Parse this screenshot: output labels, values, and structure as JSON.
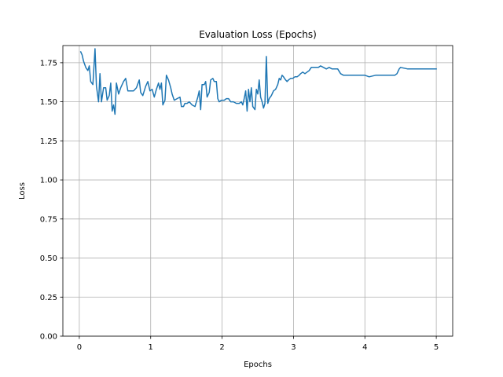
{
  "chart_data": {
    "type": "line",
    "title": "Evaluation Loss (Epochs)",
    "xlabel": "Epochs",
    "ylabel": "Loss",
    "xlim": [
      -0.23,
      5.23
    ],
    "ylim": [
      0.0,
      1.86
    ],
    "xticks": [
      0,
      1,
      2,
      3,
      4,
      5
    ],
    "xtick_labels": [
      "0",
      "1",
      "2",
      "3",
      "4",
      "5"
    ],
    "yticks": [
      0.0,
      0.25,
      0.5,
      0.75,
      1.0,
      1.25,
      1.5,
      1.75
    ],
    "ytick_labels": [
      "0.00",
      "0.25",
      "0.50",
      "0.75",
      "1.00",
      "1.25",
      "1.50",
      "1.75"
    ],
    "grid": true,
    "series_color": "#1f77b4",
    "grid_color": "#b0b0b0",
    "series": [
      {
        "values": [
          [
            0.02,
            1.82
          ],
          [
            0.04,
            1.8
          ],
          [
            0.06,
            1.76
          ],
          [
            0.09,
            1.72
          ],
          [
            0.12,
            1.7
          ],
          [
            0.14,
            1.73
          ],
          [
            0.16,
            1.63
          ],
          [
            0.19,
            1.61
          ],
          [
            0.22,
            1.84
          ],
          [
            0.24,
            1.6
          ],
          [
            0.27,
            1.5
          ],
          [
            0.29,
            1.68
          ],
          [
            0.31,
            1.5
          ],
          [
            0.34,
            1.59
          ],
          [
            0.37,
            1.59
          ],
          [
            0.39,
            1.51
          ],
          [
            0.42,
            1.54
          ],
          [
            0.44,
            1.62
          ],
          [
            0.46,
            1.44
          ],
          [
            0.48,
            1.48
          ],
          [
            0.5,
            1.42
          ],
          [
            0.52,
            1.62
          ],
          [
            0.55,
            1.55
          ],
          [
            0.58,
            1.59
          ],
          [
            0.62,
            1.63
          ],
          [
            0.65,
            1.65
          ],
          [
            0.68,
            1.57
          ],
          [
            0.72,
            1.57
          ],
          [
            0.76,
            1.57
          ],
          [
            0.8,
            1.59
          ],
          [
            0.84,
            1.64
          ],
          [
            0.86,
            1.56
          ],
          [
            0.89,
            1.54
          ],
          [
            0.93,
            1.6
          ],
          [
            0.96,
            1.63
          ],
          [
            0.99,
            1.57
          ],
          [
            1.02,
            1.58
          ],
          [
            1.05,
            1.53
          ],
          [
            1.08,
            1.58
          ],
          [
            1.11,
            1.62
          ],
          [
            1.13,
            1.58
          ],
          [
            1.15,
            1.62
          ],
          [
            1.17,
            1.48
          ],
          [
            1.2,
            1.51
          ],
          [
            1.22,
            1.67
          ],
          [
            1.25,
            1.64
          ],
          [
            1.28,
            1.59
          ],
          [
            1.3,
            1.55
          ],
          [
            1.33,
            1.51
          ],
          [
            1.37,
            1.52
          ],
          [
            1.41,
            1.53
          ],
          [
            1.43,
            1.47
          ],
          [
            1.46,
            1.47
          ],
          [
            1.48,
            1.49
          ],
          [
            1.51,
            1.49
          ],
          [
            1.54,
            1.5
          ],
          [
            1.58,
            1.48
          ],
          [
            1.62,
            1.47
          ],
          [
            1.66,
            1.53
          ],
          [
            1.68,
            1.57
          ],
          [
            1.7,
            1.45
          ],
          [
            1.72,
            1.61
          ],
          [
            1.75,
            1.61
          ],
          [
            1.77,
            1.63
          ],
          [
            1.79,
            1.53
          ],
          [
            1.82,
            1.56
          ],
          [
            1.84,
            1.64
          ],
          [
            1.87,
            1.65
          ],
          [
            1.89,
            1.63
          ],
          [
            1.92,
            1.63
          ],
          [
            1.94,
            1.52
          ],
          [
            1.96,
            1.5
          ],
          [
            1.99,
            1.51
          ],
          [
            2.03,
            1.51
          ],
          [
            2.06,
            1.52
          ],
          [
            2.09,
            1.52
          ],
          [
            2.12,
            1.5
          ],
          [
            2.16,
            1.5
          ],
          [
            2.2,
            1.49
          ],
          [
            2.24,
            1.49
          ],
          [
            2.27,
            1.5
          ],
          [
            2.29,
            1.48
          ],
          [
            2.31,
            1.52
          ],
          [
            2.33,
            1.57
          ],
          [
            2.35,
            1.44
          ],
          [
            2.37,
            1.58
          ],
          [
            2.39,
            1.5
          ],
          [
            2.41,
            1.59
          ],
          [
            2.43,
            1.47
          ],
          [
            2.46,
            1.45
          ],
          [
            2.48,
            1.58
          ],
          [
            2.5,
            1.55
          ],
          [
            2.52,
            1.64
          ],
          [
            2.54,
            1.53
          ],
          [
            2.56,
            1.5
          ],
          [
            2.58,
            1.46
          ],
          [
            2.6,
            1.49
          ],
          [
            2.62,
            1.79
          ],
          [
            2.64,
            1.49
          ],
          [
            2.66,
            1.52
          ],
          [
            2.69,
            1.54
          ],
          [
            2.72,
            1.57
          ],
          [
            2.75,
            1.58
          ],
          [
            2.78,
            1.61
          ],
          [
            2.8,
            1.65
          ],
          [
            2.82,
            1.64
          ],
          [
            2.84,
            1.67
          ],
          [
            2.86,
            1.66
          ],
          [
            2.89,
            1.64
          ],
          [
            2.91,
            1.63
          ],
          [
            2.93,
            1.64
          ],
          [
            2.96,
            1.65
          ],
          [
            2.99,
            1.65
          ],
          [
            3.02,
            1.66
          ],
          [
            3.05,
            1.66
          ],
          [
            3.08,
            1.67
          ],
          [
            3.1,
            1.68
          ],
          [
            3.13,
            1.69
          ],
          [
            3.16,
            1.68
          ],
          [
            3.19,
            1.69
          ],
          [
            3.22,
            1.7
          ],
          [
            3.25,
            1.72
          ],
          [
            3.3,
            1.72
          ],
          [
            3.35,
            1.72
          ],
          [
            3.38,
            1.73
          ],
          [
            3.42,
            1.72
          ],
          [
            3.46,
            1.71
          ],
          [
            3.5,
            1.72
          ],
          [
            3.54,
            1.71
          ],
          [
            3.58,
            1.71
          ],
          [
            3.62,
            1.71
          ],
          [
            3.66,
            1.68
          ],
          [
            3.7,
            1.67
          ],
          [
            3.75,
            1.67
          ],
          [
            3.8,
            1.67
          ],
          [
            3.88,
            1.67
          ],
          [
            3.95,
            1.67
          ],
          [
            4.0,
            1.67
          ],
          [
            4.06,
            1.66
          ],
          [
            4.15,
            1.67
          ],
          [
            4.25,
            1.67
          ],
          [
            4.35,
            1.67
          ],
          [
            4.42,
            1.67
          ],
          [
            4.45,
            1.68
          ],
          [
            4.48,
            1.71
          ],
          [
            4.5,
            1.72
          ],
          [
            4.6,
            1.71
          ],
          [
            4.7,
            1.71
          ],
          [
            4.8,
            1.71
          ],
          [
            4.92,
            1.71
          ],
          [
            5.0,
            1.71
          ]
        ]
      }
    ]
  }
}
